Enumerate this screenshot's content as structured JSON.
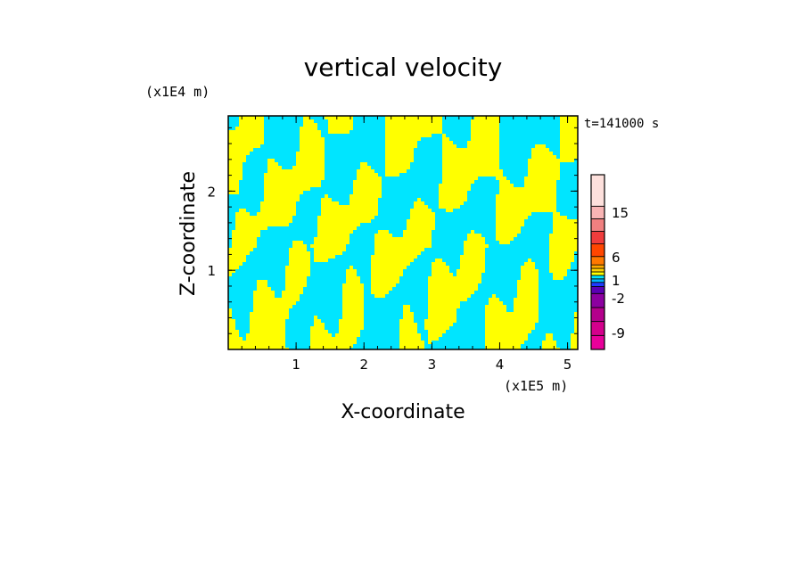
{
  "chart_data": {
    "type": "heatmap",
    "title": "vertical velocity",
    "xlabel": "X-coordinate",
    "ylabel": "Z-coordinate",
    "x_unit": "(x1E5 m)",
    "y_unit": "(x1E4 m)",
    "time_label": "t=141000 s",
    "xlim": [
      0,
      5.15
    ],
    "ylim": [
      0,
      2.95
    ],
    "x_ticks": [
      "1",
      "2",
      "3",
      "4",
      "5"
    ],
    "y_ticks": [
      "1",
      "2"
    ],
    "x_tick_values": [
      1,
      2,
      3,
      4,
      5
    ],
    "y_tick_values": [
      1,
      2
    ],
    "field_colors": {
      "positive": "#ffff00",
      "negative": "#00e5ff"
    },
    "colorbar": {
      "levels": [
        {
          "color": "#e8009a"
        },
        {
          "color": "#d4008c"
        },
        {
          "color": "#b4008c"
        },
        {
          "color": "#8c00a0"
        },
        {
          "color": "#5a00b4"
        },
        {
          "color": "#1e3cff"
        },
        {
          "color": "#00b4ff"
        },
        {
          "color": "#00e5ff"
        },
        {
          "color": "#ffff00"
        },
        {
          "color": "#ffd200"
        },
        {
          "color": "#ffaa00"
        },
        {
          "color": "#ff7800"
        },
        {
          "color": "#ff4600"
        },
        {
          "color": "#f03c3c"
        },
        {
          "color": "#f08080"
        },
        {
          "color": "#f8b4b4"
        },
        {
          "color": "#fde0dc"
        }
      ],
      "labels": [
        "15",
        "6",
        "1",
        "-2",
        "-9"
      ]
    }
  }
}
